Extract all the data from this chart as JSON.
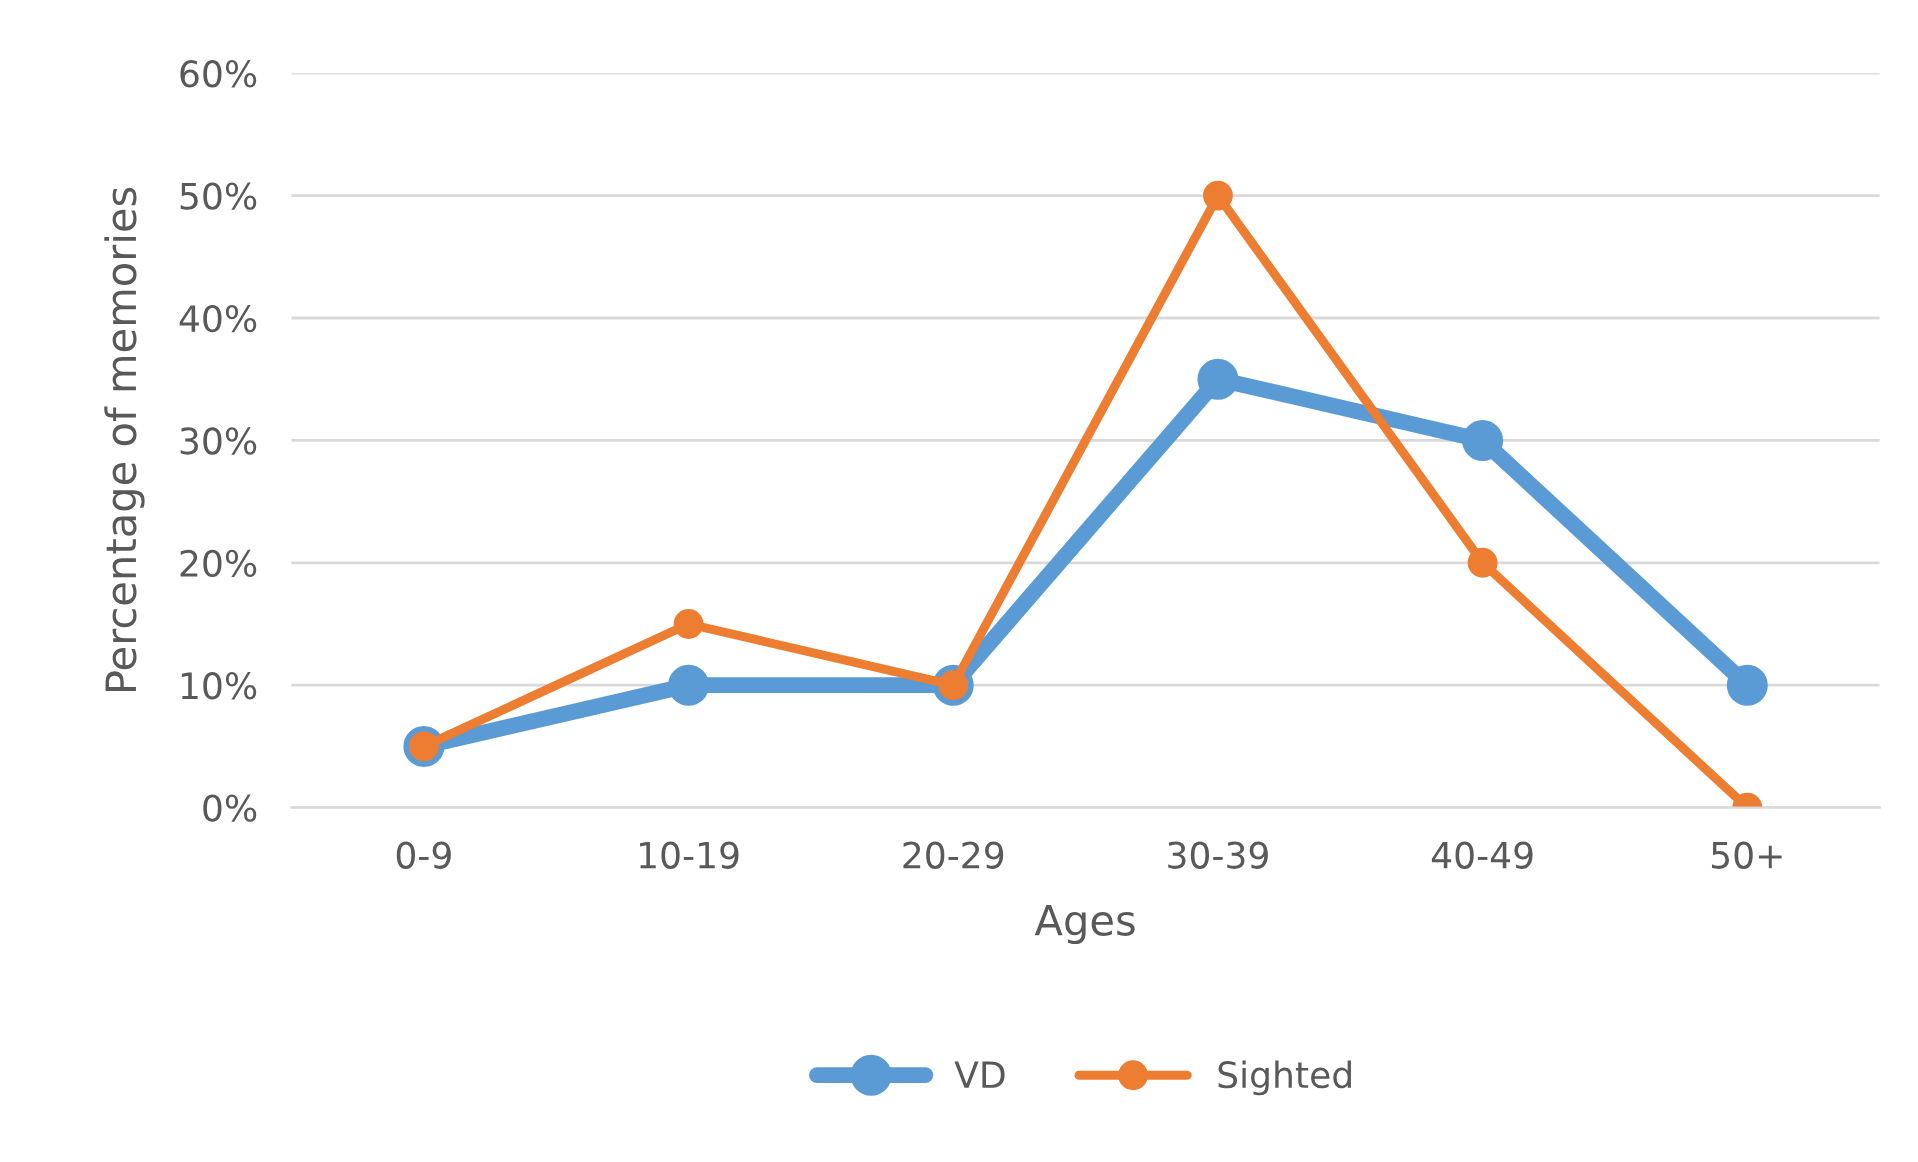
{
  "chart_data": {
    "type": "line",
    "xlabel": "Ages",
    "ylabel": "Percentage of memories",
    "categories": [
      "0-9",
      "10-19",
      "20-29",
      "30-39",
      "40-49",
      "50+"
    ],
    "series": [
      {
        "name": "VD",
        "color": "#5b9bd5",
        "values": [
          5,
          10,
          10,
          35,
          30,
          10
        ]
      },
      {
        "name": "Sighted",
        "color": "#ed7d31",
        "values": [
          5,
          15,
          10,
          50,
          20,
          0
        ]
      }
    ],
    "ylim": [
      0,
      60
    ],
    "yticks": [
      {
        "value": 0,
        "label": "0%"
      },
      {
        "value": 10,
        "label": "10%"
      },
      {
        "value": 20,
        "label": "20%"
      },
      {
        "value": 30,
        "label": "30%"
      },
      {
        "value": 40,
        "label": "40%"
      },
      {
        "value": 50,
        "label": "50%"
      },
      {
        "value": 60,
        "label": "60%"
      }
    ],
    "grid": "y",
    "legend": "bottom",
    "marker": "circle",
    "line_style": "solid"
  }
}
